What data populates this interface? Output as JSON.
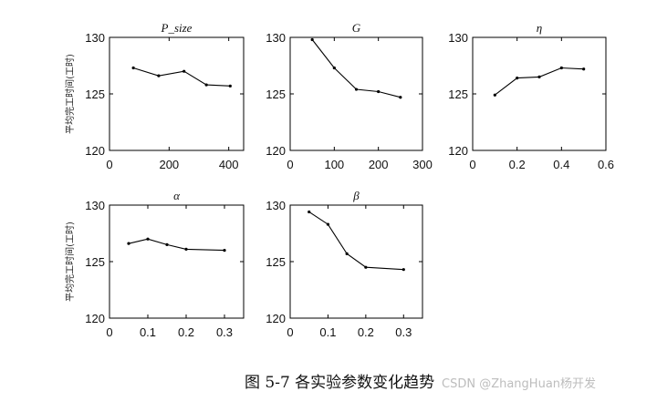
{
  "caption": "图 5-7 各实验参数变化趋势",
  "watermark": "CSDN @ZhangHuan杨开发",
  "chart_data": [
    {
      "type": "line",
      "title": "P_size",
      "ylabel": "平均完工时间(工时)",
      "x": [
        80,
        165,
        250,
        325,
        405
      ],
      "values": [
        127.3,
        126.6,
        127.0,
        125.8,
        125.7
      ],
      "xlim": [
        0,
        450
      ],
      "ylim": [
        120,
        130
      ],
      "xticks": [
        0,
        200,
        400
      ],
      "yticks": [
        120,
        125,
        130
      ],
      "xtick_labels": [
        "0",
        "200",
        "400"
      ],
      "ytick_labels": [
        "120",
        "125",
        "130"
      ]
    },
    {
      "type": "line",
      "title": "G",
      "ylabel": "",
      "x": [
        50,
        100,
        150,
        200,
        250
      ],
      "values": [
        129.8,
        127.3,
        125.4,
        125.2,
        124.7
      ],
      "xlim": [
        0,
        300
      ],
      "ylim": [
        120,
        130
      ],
      "xticks": [
        0,
        100,
        200,
        300
      ],
      "yticks": [
        120,
        125,
        130
      ],
      "xtick_labels": [
        "0",
        "100",
        "200",
        "300"
      ],
      "ytick_labels": [
        "120",
        "125",
        "130"
      ]
    },
    {
      "type": "line",
      "title": "η",
      "ylabel": "",
      "x": [
        0.1,
        0.2,
        0.3,
        0.4,
        0.5
      ],
      "values": [
        124.9,
        126.4,
        126.5,
        127.3,
        127.2
      ],
      "xlim": [
        0,
        0.6
      ],
      "ylim": [
        120,
        130
      ],
      "xticks": [
        0,
        0.2,
        0.4,
        0.6
      ],
      "yticks": [
        120,
        125,
        130
      ],
      "xtick_labels": [
        "0",
        "0.2",
        "0.4",
        "0.6"
      ],
      "ytick_labels": [
        "120",
        "125",
        "130"
      ]
    },
    {
      "type": "line",
      "title": "α",
      "ylabel": "平均完工时间(工时)",
      "x": [
        0.05,
        0.1,
        0.15,
        0.2,
        0.3
      ],
      "values": [
        126.6,
        127.0,
        126.5,
        126.1,
        126.0
      ],
      "xlim": [
        0,
        0.35
      ],
      "ylim": [
        120,
        130
      ],
      "xticks": [
        0,
        0.1,
        0.2,
        0.3
      ],
      "yticks": [
        120,
        125,
        130
      ],
      "xtick_labels": [
        "0",
        "0.1",
        "0.2",
        "0.3"
      ],
      "ytick_labels": [
        "120",
        "125",
        "130"
      ]
    },
    {
      "type": "line",
      "title": "β",
      "ylabel": "",
      "x": [
        0.05,
        0.1,
        0.15,
        0.2,
        0.3
      ],
      "values": [
        129.4,
        128.3,
        125.7,
        124.5,
        124.3
      ],
      "xlim": [
        0,
        0.35
      ],
      "ylim": [
        120,
        130
      ],
      "xticks": [
        0,
        0.1,
        0.2,
        0.3
      ],
      "yticks": [
        120,
        125,
        130
      ],
      "xtick_labels": [
        "0",
        "0.1",
        "0.2",
        "0.3"
      ],
      "ytick_labels": [
        "120",
        "125",
        "130"
      ]
    }
  ]
}
